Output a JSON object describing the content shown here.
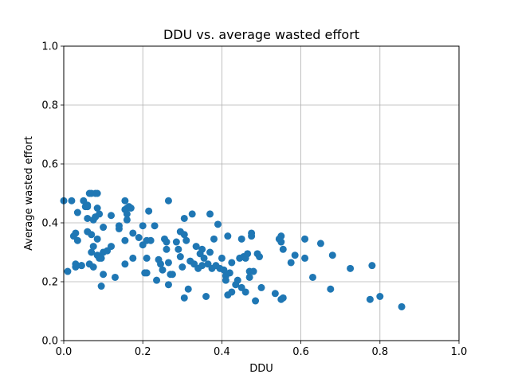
{
  "chart_data": {
    "type": "scatter",
    "title": "DDU vs. average wasted effort",
    "xlabel": "DDU",
    "ylabel": "Average wasted effort",
    "xlim": [
      0,
      1
    ],
    "ylim": [
      0,
      1
    ],
    "xticks": [
      "0.0",
      "0.2",
      "0.4",
      "0.6",
      "0.8",
      "1.0"
    ],
    "yticks": [
      "0.0",
      "0.2",
      "0.4",
      "0.6",
      "0.8",
      "1.0"
    ],
    "grid": true,
    "marker_color": "#1f77b4",
    "points": [
      [
        0.0,
        0.475
      ],
      [
        0.01,
        0.235
      ],
      [
        0.02,
        0.475
      ],
      [
        0.025,
        0.355
      ],
      [
        0.03,
        0.365
      ],
      [
        0.03,
        0.25
      ],
      [
        0.03,
        0.26
      ],
      [
        0.035,
        0.34
      ],
      [
        0.035,
        0.435
      ],
      [
        0.045,
        0.255
      ],
      [
        0.045,
        0.255
      ],
      [
        0.05,
        0.475
      ],
      [
        0.055,
        0.455
      ],
      [
        0.06,
        0.46
      ],
      [
        0.06,
        0.455
      ],
      [
        0.06,
        0.415
      ],
      [
        0.06,
        0.37
      ],
      [
        0.065,
        0.5
      ],
      [
        0.065,
        0.26
      ],
      [
        0.07,
        0.5
      ],
      [
        0.07,
        0.36
      ],
      [
        0.07,
        0.3
      ],
      [
        0.075,
        0.41
      ],
      [
        0.075,
        0.32
      ],
      [
        0.075,
        0.25
      ],
      [
        0.08,
        0.5
      ],
      [
        0.08,
        0.42
      ],
      [
        0.085,
        0.5
      ],
      [
        0.085,
        0.45
      ],
      [
        0.085,
        0.345
      ],
      [
        0.085,
        0.29
      ],
      [
        0.09,
        0.43
      ],
      [
        0.09,
        0.28
      ],
      [
        0.095,
        0.28
      ],
      [
        0.095,
        0.185
      ],
      [
        0.1,
        0.385
      ],
      [
        0.1,
        0.3
      ],
      [
        0.1,
        0.225
      ],
      [
        0.11,
        0.305
      ],
      [
        0.12,
        0.425
      ],
      [
        0.12,
        0.32
      ],
      [
        0.13,
        0.215
      ],
      [
        0.14,
        0.39
      ],
      [
        0.14,
        0.38
      ],
      [
        0.155,
        0.475
      ],
      [
        0.155,
        0.445
      ],
      [
        0.155,
        0.34
      ],
      [
        0.155,
        0.26
      ],
      [
        0.16,
        0.43
      ],
      [
        0.16,
        0.41
      ],
      [
        0.16,
        0.45
      ],
      [
        0.165,
        0.455
      ],
      [
        0.17,
        0.45
      ],
      [
        0.175,
        0.365
      ],
      [
        0.175,
        0.28
      ],
      [
        0.19,
        0.35
      ],
      [
        0.2,
        0.39
      ],
      [
        0.2,
        0.325
      ],
      [
        0.205,
        0.23
      ],
      [
        0.21,
        0.34
      ],
      [
        0.21,
        0.28
      ],
      [
        0.21,
        0.23
      ],
      [
        0.215,
        0.44
      ],
      [
        0.22,
        0.34
      ],
      [
        0.23,
        0.39
      ],
      [
        0.235,
        0.205
      ],
      [
        0.24,
        0.275
      ],
      [
        0.245,
        0.26
      ],
      [
        0.25,
        0.24
      ],
      [
        0.255,
        0.345
      ],
      [
        0.26,
        0.335
      ],
      [
        0.26,
        0.31
      ],
      [
        0.265,
        0.475
      ],
      [
        0.265,
        0.265
      ],
      [
        0.265,
        0.19
      ],
      [
        0.27,
        0.225
      ],
      [
        0.275,
        0.225
      ],
      [
        0.285,
        0.335
      ],
      [
        0.29,
        0.31
      ],
      [
        0.295,
        0.37
      ],
      [
        0.295,
        0.285
      ],
      [
        0.3,
        0.25
      ],
      [
        0.305,
        0.415
      ],
      [
        0.305,
        0.36
      ],
      [
        0.305,
        0.145
      ],
      [
        0.31,
        0.34
      ],
      [
        0.315,
        0.175
      ],
      [
        0.32,
        0.27
      ],
      [
        0.325,
        0.43
      ],
      [
        0.33,
        0.26
      ],
      [
        0.335,
        0.32
      ],
      [
        0.34,
        0.245
      ],
      [
        0.345,
        0.295
      ],
      [
        0.35,
        0.255
      ],
      [
        0.35,
        0.31
      ],
      [
        0.355,
        0.28
      ],
      [
        0.36,
        0.15
      ],
      [
        0.365,
        0.26
      ],
      [
        0.37,
        0.43
      ],
      [
        0.37,
        0.3
      ],
      [
        0.375,
        0.245
      ],
      [
        0.38,
        0.345
      ],
      [
        0.385,
        0.255
      ],
      [
        0.39,
        0.395
      ],
      [
        0.395,
        0.245
      ],
      [
        0.4,
        0.28
      ],
      [
        0.405,
        0.24
      ],
      [
        0.41,
        0.22
      ],
      [
        0.41,
        0.205
      ],
      [
        0.415,
        0.355
      ],
      [
        0.415,
        0.155
      ],
      [
        0.42,
        0.23
      ],
      [
        0.425,
        0.265
      ],
      [
        0.425,
        0.165
      ],
      [
        0.435,
        0.19
      ],
      [
        0.44,
        0.205
      ],
      [
        0.445,
        0.28
      ],
      [
        0.45,
        0.345
      ],
      [
        0.45,
        0.18
      ],
      [
        0.455,
        0.285
      ],
      [
        0.46,
        0.28
      ],
      [
        0.46,
        0.165
      ],
      [
        0.465,
        0.295
      ],
      [
        0.47,
        0.235
      ],
      [
        0.47,
        0.215
      ],
      [
        0.475,
        0.365
      ],
      [
        0.475,
        0.355
      ],
      [
        0.48,
        0.235
      ],
      [
        0.485,
        0.135
      ],
      [
        0.49,
        0.295
      ],
      [
        0.495,
        0.285
      ],
      [
        0.5,
        0.18
      ],
      [
        0.535,
        0.16
      ],
      [
        0.545,
        0.345
      ],
      [
        0.55,
        0.355
      ],
      [
        0.55,
        0.335
      ],
      [
        0.55,
        0.14
      ],
      [
        0.555,
        0.31
      ],
      [
        0.555,
        0.145
      ],
      [
        0.575,
        0.265
      ],
      [
        0.585,
        0.29
      ],
      [
        0.61,
        0.345
      ],
      [
        0.61,
        0.28
      ],
      [
        0.63,
        0.215
      ],
      [
        0.65,
        0.33
      ],
      [
        0.675,
        0.175
      ],
      [
        0.68,
        0.29
      ],
      [
        0.725,
        0.245
      ],
      [
        0.775,
        0.14
      ],
      [
        0.78,
        0.255
      ],
      [
        0.8,
        0.15
      ],
      [
        0.855,
        0.115
      ]
    ]
  }
}
